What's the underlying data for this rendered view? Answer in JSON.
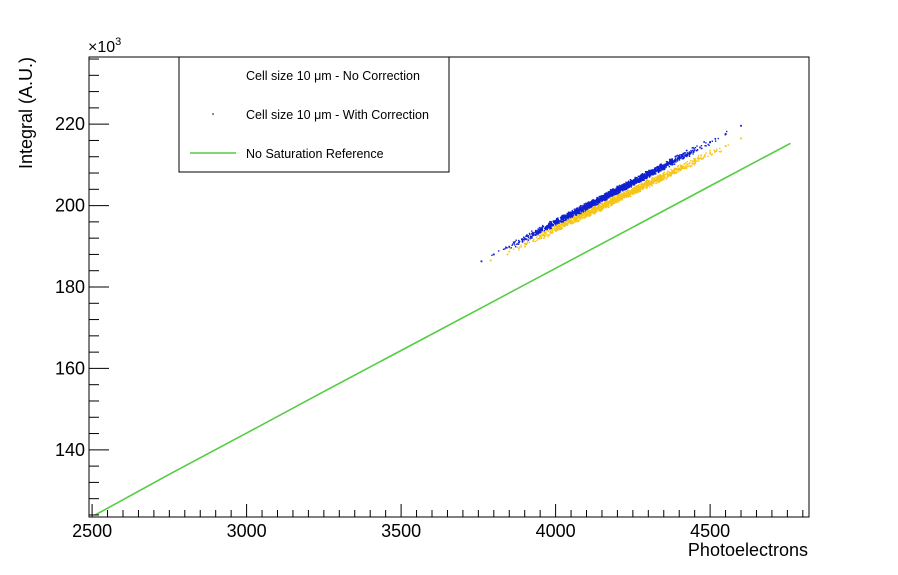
{
  "chart_data": {
    "type": "scatter",
    "xlabel": "Photoelectrons",
    "ylabel": "Integral (A.U.)",
    "y_multiplier": {
      "base": "×10",
      "exponent": "3"
    },
    "xlim": [
      2490,
      4820
    ],
    "ylim": [
      123.5,
      236.5
    ],
    "x_ticks": [
      {
        "value": 2500,
        "label": "2500"
      },
      {
        "value": 3000,
        "label": "3000"
      },
      {
        "value": 3500,
        "label": "3500"
      },
      {
        "value": 4000,
        "label": "4000"
      },
      {
        "value": 4500,
        "label": "4500"
      }
    ],
    "y_ticks": [
      {
        "value": 140,
        "label": "140"
      },
      {
        "value": 160,
        "label": "160"
      },
      {
        "value": 180,
        "label": "180"
      },
      {
        "value": 200,
        "label": "200"
      },
      {
        "value": 220,
        "label": "220"
      }
    ],
    "grid": false,
    "legend_position": "top-left",
    "legend": [
      {
        "label": "Cell size 10 μm - No Correction",
        "marker": "none"
      },
      {
        "label": "Cell size 10 μm - With Correction",
        "marker": "dot"
      },
      {
        "label": "No Saturation Reference",
        "marker": "line"
      }
    ],
    "series": [
      {
        "name": "Cell size 10 μm - No Correction",
        "kind": "scatter",
        "color": "#f5c518",
        "x": [
          3790,
          3850,
          3900,
          3950,
          4000,
          4050,
          4100,
          4150,
          4200,
          4250,
          4300,
          4350,
          4400,
          4450,
          4500,
          4550,
          4600
        ],
        "y": [
          186.5,
          188.7,
          190.6,
          192.4,
          194.3,
          196.2,
          198.0,
          199.8,
          201.7,
          203.5,
          205.4,
          207.2,
          209.1,
          210.9,
          212.8,
          214.6,
          216.5
        ]
      },
      {
        "name": "Cell size 10 μm - With Correction",
        "kind": "scatter",
        "color": "#1020d0",
        "x": [
          3760,
          3800,
          3850,
          3900,
          3950,
          4000,
          4050,
          4100,
          4150,
          4200,
          4250,
          4300,
          4350,
          4400,
          4450,
          4500,
          4550,
          4600
        ],
        "y": [
          186.3,
          188.0,
          189.9,
          191.9,
          193.9,
          195.9,
          197.8,
          199.8,
          201.8,
          203.8,
          205.7,
          207.7,
          209.7,
          211.7,
          213.6,
          215.6,
          217.6,
          219.6
        ]
      },
      {
        "name": "No Saturation Reference",
        "kind": "line",
        "color": "#55cc44",
        "x": [
          2510,
          2750,
          3000,
          3250,
          3500,
          3750,
          4000,
          4250,
          4500,
          4760
        ],
        "y": [
          124.0,
          134.0,
          144.1,
          154.3,
          164.4,
          174.5,
          184.6,
          194.7,
          204.8,
          215.3
        ]
      }
    ],
    "note_none": ""
  }
}
